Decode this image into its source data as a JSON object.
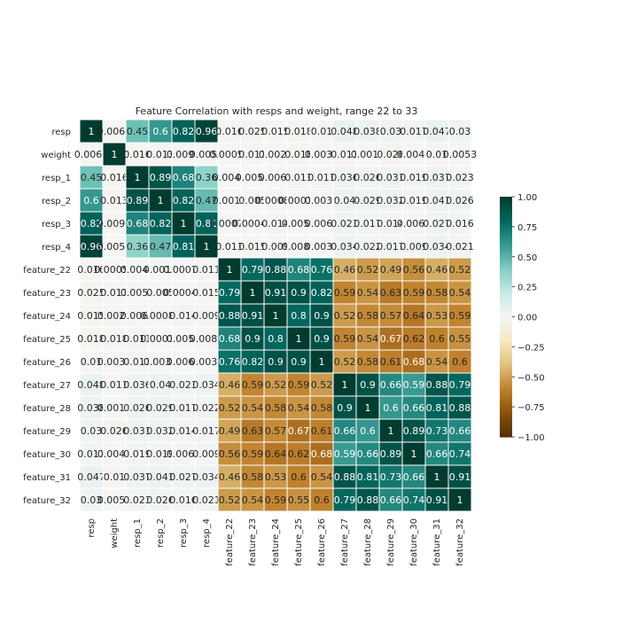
{
  "chart_data": {
    "type": "heatmap",
    "title": "Feature Correlation with resps and weight, range 22 to 33",
    "labels": [
      "resp",
      "weight",
      "resp_1",
      "resp_2",
      "resp_3",
      "resp_4",
      "feature_22",
      "feature_23",
      "feature_24",
      "feature_25",
      "feature_26",
      "feature_27",
      "feature_28",
      "feature_29",
      "feature_30",
      "feature_31",
      "feature_32"
    ],
    "cell_labels": [
      [
        "1",
        "0.0069",
        "0.45",
        "0.6",
        "0.82",
        "0.96",
        "0.016",
        "0.025",
        "0.015",
        "0.018",
        "0.01",
        "0.048",
        "0.038",
        "0.03",
        "0.017",
        "0.047",
        "0.03"
      ],
      [
        "0.0069",
        "1",
        "0.016",
        "0.013",
        "0.0092",
        "0.0058",
        "0.00055",
        "0.011",
        "0.0023",
        "0.018",
        "0.0032",
        "0.011",
        "0.0011",
        "0.026",
        "0.0049",
        "0.01",
        "0.0053"
      ],
      [
        "0.45",
        "0.016",
        "1",
        "0.89",
        "0.68",
        "0.36",
        "0.0044",
        "0.0054",
        "0.0065",
        "0.011",
        "0.011",
        "0.036",
        "0.026",
        "0.031",
        "0.019",
        "0.037",
        "0.023"
      ],
      [
        "0.6",
        "0.013",
        "0.89",
        "1",
        "0.82",
        "0.47",
        "0.0018",
        "0.005",
        "0.00084",
        "0.00016",
        "0.0032",
        "0.04",
        "0.029",
        "0.032",
        "0.019",
        "0.041",
        "0.026"
      ],
      [
        "0.82",
        "0.0092",
        "0.68",
        "0.82",
        "1",
        "0.81",
        "0.00079",
        "0.00044",
        "0.014",
        "0.0055",
        "0.0062",
        "0.023",
        "0.017",
        "0.014",
        "0.0069",
        "0.027",
        "0.016"
      ],
      [
        "0.96",
        "0.0058",
        "0.36",
        "0.47",
        "0.81",
        "1",
        "0.011",
        "0.015",
        "0.009",
        "0.0082",
        "0.0036",
        "0.034",
        "0.022",
        "0.017",
        "0.009",
        "0.034",
        "0.021"
      ],
      [
        "0.016",
        "0.00055",
        "0.0044",
        "0.0018",
        "0.00079",
        "0.011",
        "1",
        "0.79",
        "0.88",
        "0.68",
        "0.76",
        "0.46",
        "0.52",
        "0.49",
        "0.56",
        "0.46",
        "0.52"
      ],
      [
        "0.025",
        "0.011",
        "0.0054",
        "0.005",
        "0.00044",
        "0.015",
        "0.79",
        "1",
        "0.91",
        "0.9",
        "0.82",
        "0.59",
        "0.54",
        "0.63",
        "0.59",
        "0.58",
        "0.54"
      ],
      [
        "0.015",
        "0.0023",
        "0.0065",
        "0.00084",
        "0.014",
        "0.009",
        "0.88",
        "0.91",
        "1",
        "0.8",
        "0.9",
        "0.52",
        "0.58",
        "0.57",
        "0.64",
        "0.53",
        "0.59"
      ],
      [
        "0.018",
        "0.018",
        "0.011",
        "0.00016",
        "0.0055",
        "0.0082",
        "0.68",
        "0.9",
        "0.8",
        "1",
        "0.9",
        "0.59",
        "0.54",
        "0.67",
        "0.62",
        "0.6",
        "0.55"
      ],
      [
        "0.01",
        "0.0032",
        "0.011",
        "0.0032",
        "0.0062",
        "0.0036",
        "0.76",
        "0.82",
        "0.9",
        "0.9",
        "1",
        "0.52",
        "0.58",
        "0.61",
        "0.68",
        "0.54",
        "0.6"
      ],
      [
        "0.048",
        "0.011",
        "0.036",
        "0.04",
        "0.023",
        "0.034",
        "0.46",
        "0.59",
        "0.52",
        "0.59",
        "0.52",
        "1",
        "0.9",
        "0.66",
        "0.59",
        "0.88",
        "0.79"
      ],
      [
        "0.038",
        "0.0011",
        "0.026",
        "0.029",
        "0.017",
        "0.022",
        "0.52",
        "0.54",
        "0.58",
        "0.54",
        "0.58",
        "0.9",
        "1",
        "0.6",
        "0.66",
        "0.81",
        "0.88"
      ],
      [
        "0.03",
        "0.026",
        "0.031",
        "0.032",
        "0.014",
        "0.017",
        "0.49",
        "0.63",
        "0.57",
        "0.67",
        "0.61",
        "0.66",
        "0.6",
        "1",
        "0.89",
        "0.73",
        "0.66"
      ],
      [
        "0.017",
        "0.0049",
        "0.019",
        "0.019",
        "0.0069",
        "0.009",
        "0.56",
        "0.59",
        "0.64",
        "0.62",
        "0.68",
        "0.59",
        "0.66",
        "0.89",
        "1",
        "0.66",
        "0.74"
      ],
      [
        "0.047",
        "0.01",
        "0.037",
        "0.041",
        "0.027",
        "0.034",
        "0.46",
        "0.58",
        "0.53",
        "0.6",
        "0.54",
        "0.88",
        "0.81",
        "0.73",
        "0.66",
        "1",
        "0.91"
      ],
      [
        "0.03",
        "0.0053",
        "0.023",
        "0.026",
        "0.016",
        "0.021",
        "0.52",
        "0.54",
        "0.59",
        "0.55",
        "0.6",
        "0.79",
        "0.88",
        "0.66",
        "0.74",
        "0.91",
        "1"
      ]
    ],
    "values": [
      [
        1,
        -0.0069,
        0.45,
        0.6,
        0.82,
        0.96,
        -0.016,
        -0.025,
        -0.015,
        -0.018,
        -0.01,
        0.048,
        0.038,
        0.03,
        0.017,
        0.047,
        0.03
      ],
      [
        -0.0069,
        1,
        -0.016,
        -0.013,
        -0.0092,
        -0.0058,
        -0.00055,
        -0.011,
        -0.0023,
        -0.018,
        -0.0032,
        -0.011,
        -0.0011,
        -0.026,
        -0.0049,
        -0.01,
        -0.0053
      ],
      [
        0.45,
        -0.016,
        1,
        0.89,
        0.68,
        0.36,
        0.0044,
        0.0054,
        0.0065,
        0.011,
        0.011,
        0.036,
        0.026,
        0.031,
        0.019,
        0.037,
        0.023
      ],
      [
        0.6,
        -0.013,
        0.89,
        1,
        0.82,
        0.47,
        -0.0018,
        -0.005,
        -0.00084,
        0.00016,
        0.0032,
        0.04,
        0.029,
        0.032,
        0.019,
        0.041,
        0.026
      ],
      [
        0.82,
        -0.0092,
        0.68,
        0.82,
        1,
        0.81,
        0.00079,
        -0.00044,
        0.014,
        0.0055,
        0.0062,
        0.023,
        0.017,
        0.014,
        0.0069,
        0.027,
        0.016
      ],
      [
        0.96,
        -0.0058,
        0.36,
        0.47,
        0.81,
        1,
        -0.011,
        -0.015,
        -0.009,
        -0.0082,
        -0.0036,
        0.034,
        0.022,
        0.017,
        0.009,
        0.034,
        0.021
      ],
      [
        -0.016,
        -0.00055,
        0.0044,
        -0.0018,
        0.00079,
        -0.011,
        1,
        0.79,
        0.88,
        0.68,
        0.76,
        -0.46,
        -0.52,
        -0.49,
        -0.56,
        -0.46,
        -0.52
      ],
      [
        -0.025,
        -0.011,
        0.0054,
        -0.005,
        -0.00044,
        -0.015,
        0.79,
        1,
        0.91,
        0.9,
        0.82,
        -0.59,
        -0.54,
        -0.63,
        -0.59,
        -0.58,
        -0.54
      ],
      [
        -0.015,
        -0.0023,
        0.0065,
        -0.00084,
        0.014,
        -0.009,
        0.88,
        0.91,
        1,
        0.8,
        0.9,
        -0.52,
        -0.58,
        -0.57,
        -0.64,
        -0.53,
        -0.59
      ],
      [
        -0.018,
        -0.018,
        0.011,
        0.00016,
        0.0055,
        -0.0082,
        0.68,
        0.9,
        0.8,
        1,
        0.9,
        -0.59,
        -0.54,
        -0.67,
        -0.62,
        -0.6,
        -0.55
      ],
      [
        -0.01,
        -0.0032,
        0.011,
        0.0032,
        0.0062,
        -0.0036,
        0.76,
        0.82,
        0.9,
        0.9,
        1,
        -0.52,
        -0.58,
        -0.61,
        -0.68,
        -0.54,
        -0.6
      ],
      [
        0.048,
        -0.011,
        0.036,
        0.04,
        0.023,
        0.034,
        -0.46,
        -0.59,
        -0.52,
        -0.59,
        -0.52,
        1,
        0.9,
        0.66,
        0.59,
        0.88,
        0.79
      ],
      [
        0.038,
        -0.0011,
        0.026,
        0.029,
        0.017,
        0.022,
        -0.52,
        -0.54,
        -0.58,
        -0.54,
        -0.58,
        0.9,
        1,
        0.6,
        0.66,
        0.81,
        0.88
      ],
      [
        0.03,
        -0.026,
        0.031,
        0.032,
        0.014,
        0.017,
        -0.49,
        -0.63,
        -0.57,
        -0.67,
        -0.61,
        0.66,
        0.6,
        1,
        0.89,
        0.73,
        0.66
      ],
      [
        0.017,
        -0.0049,
        0.019,
        0.019,
        0.0069,
        0.009,
        -0.56,
        -0.59,
        -0.64,
        -0.62,
        -0.68,
        0.59,
        0.66,
        0.89,
        1,
        0.66,
        0.74
      ],
      [
        0.047,
        -0.01,
        0.037,
        0.041,
        0.027,
        0.034,
        -0.46,
        -0.58,
        -0.53,
        -0.6,
        -0.54,
        0.88,
        0.81,
        0.73,
        0.66,
        1,
        0.91
      ],
      [
        0.03,
        -0.0053,
        0.023,
        0.026,
        0.016,
        0.021,
        -0.52,
        -0.54,
        -0.59,
        -0.55,
        -0.6,
        0.79,
        0.88,
        0.66,
        0.74,
        0.91,
        1
      ]
    ],
    "vmin": -1,
    "vmax": 1,
    "colormap": "BrBG",
    "colorbar_ticks": [
      "1.00",
      "0.75",
      "0.50",
      "0.25",
      "0.00",
      "−0.25",
      "−0.50",
      "−0.75",
      "−1.00"
    ],
    "colorbar_tick_values": [
      1,
      0.75,
      0.5,
      0.25,
      0,
      -0.25,
      -0.5,
      -0.75,
      -1
    ]
  }
}
